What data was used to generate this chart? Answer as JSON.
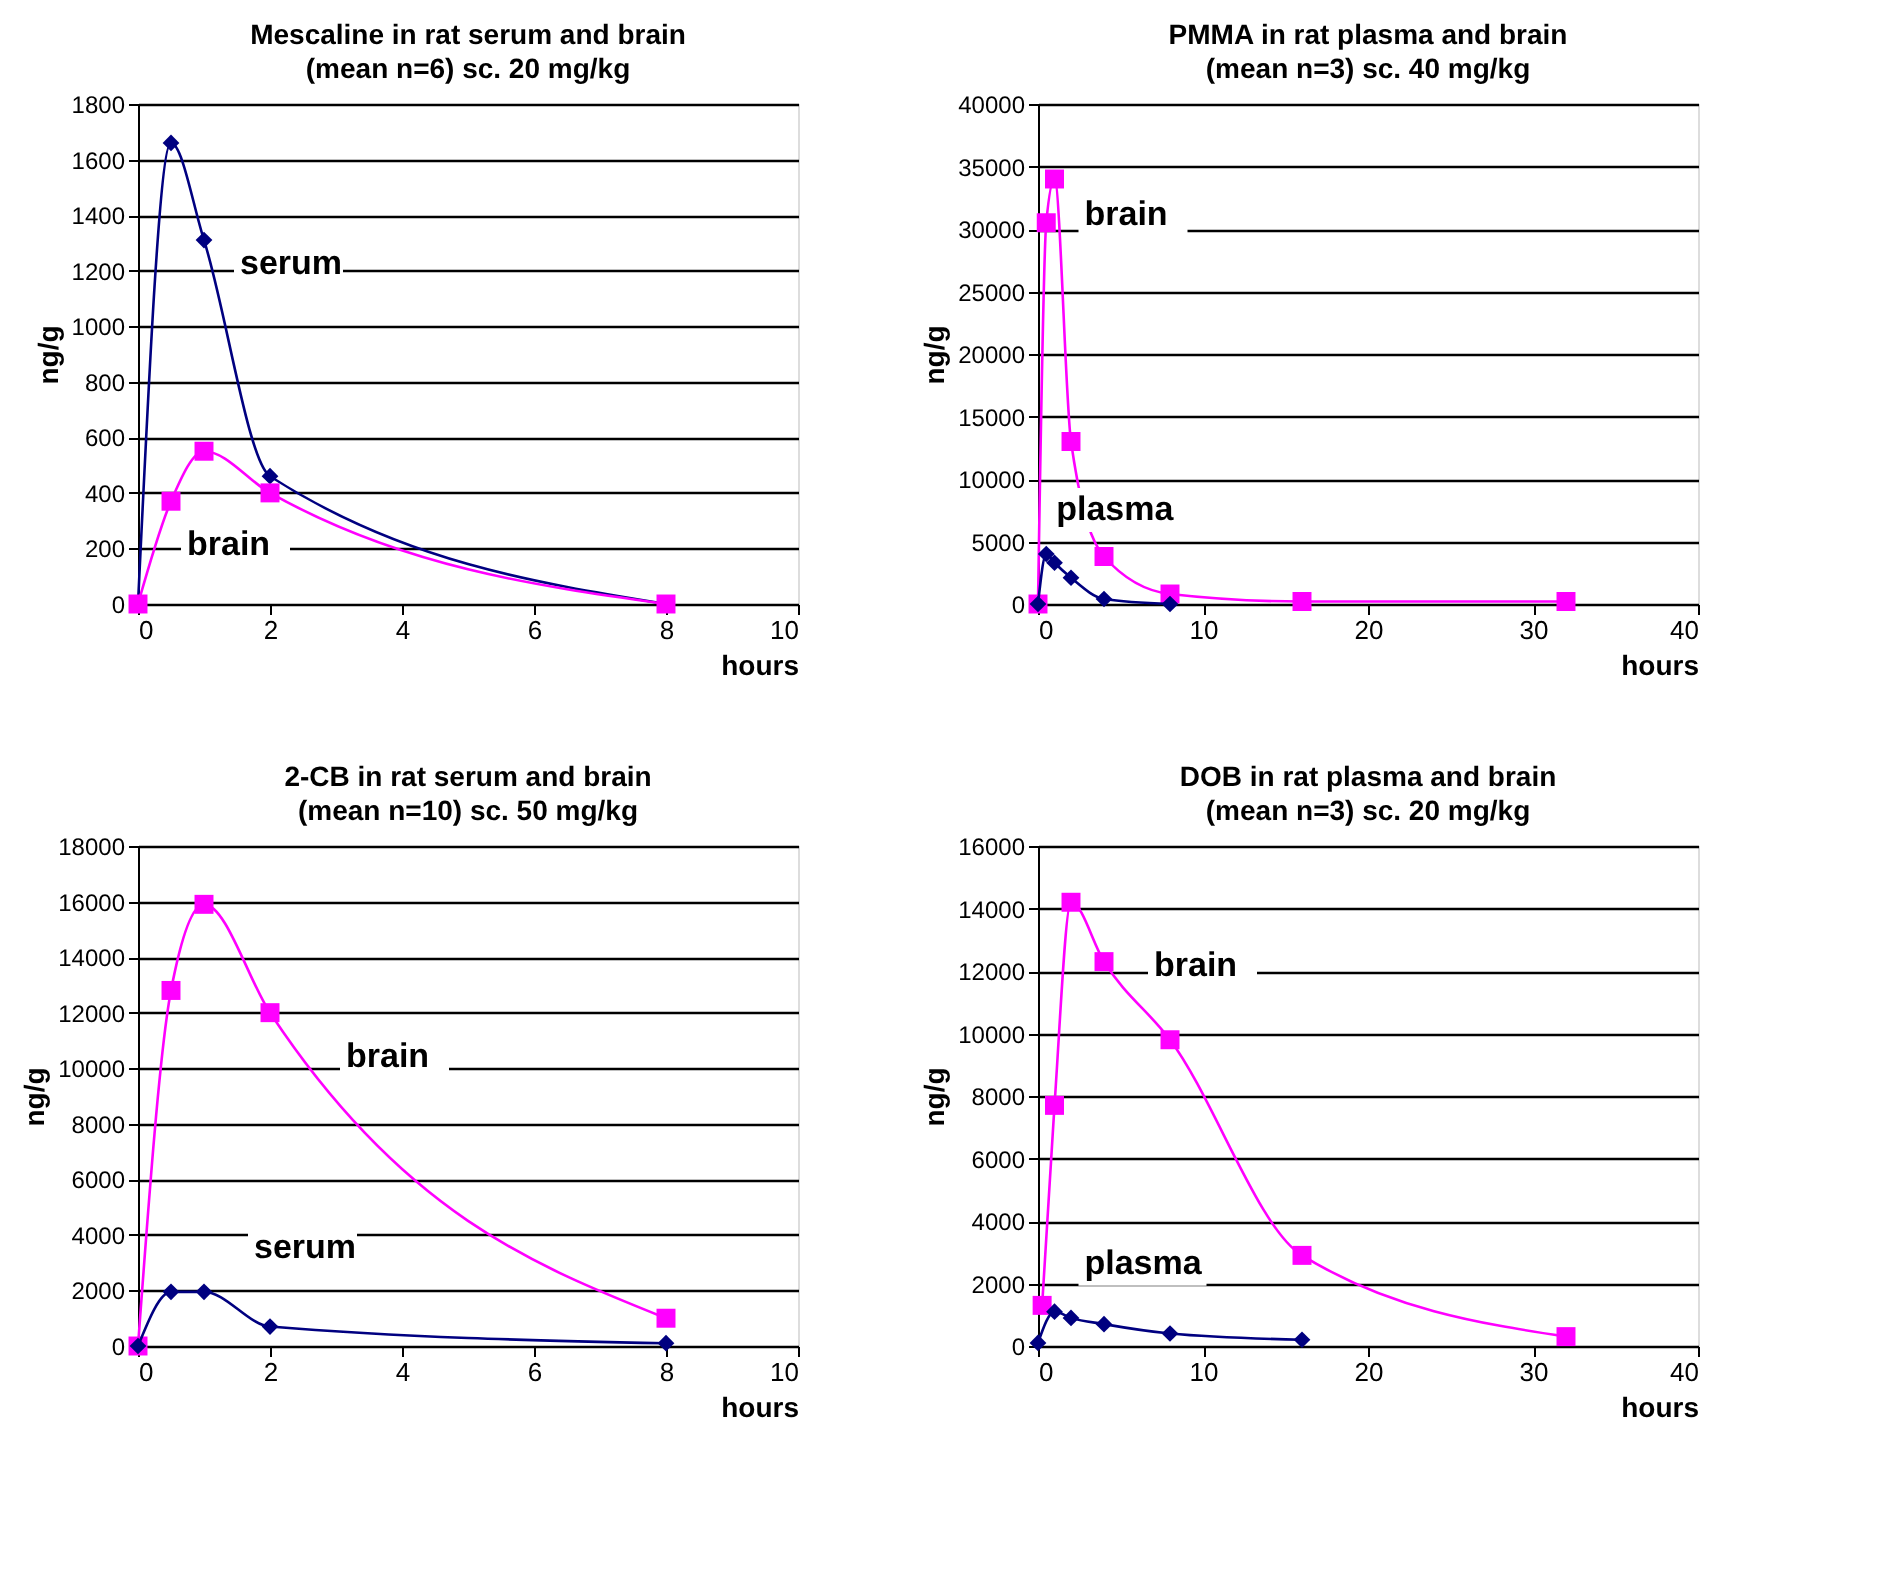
{
  "chart_data": [
    {
      "type": "line",
      "title": "Mescaline in rat serum and brain",
      "subtitle": "(mean n=6)  sc.  20 mg/kg",
      "xlabel": "hours",
      "ylabel": "ng/g",
      "xlim": [
        0,
        10
      ],
      "xticks": [
        0,
        2,
        4,
        6,
        8,
        10
      ],
      "ylim": [
        0,
        1800
      ],
      "yticks": [
        0,
        200,
        400,
        600,
        800,
        1000,
        1200,
        1400,
        1600,
        1800
      ],
      "grid": "y",
      "legend": false,
      "series": [
        {
          "name": "serum",
          "color": "#000080",
          "marker": "diamond",
          "x": [
            0,
            0.5,
            1,
            2,
            8
          ],
          "values": [
            0,
            1660,
            1310,
            460,
            0
          ]
        },
        {
          "name": "brain",
          "color": "#ff00ff",
          "marker": "square",
          "x": [
            0,
            0.5,
            1,
            2,
            8
          ],
          "values": [
            0,
            370,
            550,
            400,
            0
          ]
        }
      ]
    },
    {
      "type": "line",
      "title": "PMMA in rat plasma and brain",
      "subtitle": "(mean n=3) sc. 40 mg/kg",
      "xlabel": "hours",
      "ylabel": "ng/g",
      "xlim": [
        0,
        40
      ],
      "xticks": [
        0,
        10,
        20,
        30,
        40
      ],
      "ylim": [
        0,
        40000
      ],
      "yticks": [
        0,
        5000,
        10000,
        15000,
        20000,
        25000,
        30000,
        35000,
        40000
      ],
      "grid": "y",
      "legend": false,
      "series": [
        {
          "name": "brain",
          "color": "#ff00ff",
          "marker": "square",
          "x": [
            0,
            0.5,
            1,
            2,
            4,
            8,
            16,
            32
          ],
          "values": [
            0,
            30500,
            34000,
            13000,
            3800,
            800,
            200,
            200
          ]
        },
        {
          "name": "plasma",
          "color": "#000080",
          "marker": "diamond",
          "x": [
            0,
            0.5,
            1,
            2,
            4,
            8
          ],
          "values": [
            0,
            4000,
            3300,
            2100,
            400,
            0
          ]
        }
      ]
    },
    {
      "type": "line",
      "title": "2-CB in rat serum and brain",
      "subtitle": "(mean n=10) sc. 50 mg/kg",
      "xlabel": "hours",
      "ylabel": "ng/g",
      "xlim": [
        0,
        10
      ],
      "xticks": [
        0,
        2,
        4,
        6,
        8,
        10
      ],
      "ylim": [
        0,
        18000
      ],
      "yticks": [
        0,
        2000,
        4000,
        6000,
        8000,
        10000,
        12000,
        14000,
        16000,
        18000
      ],
      "grid": "y",
      "legend": false,
      "series": [
        {
          "name": "brain",
          "color": "#ff00ff",
          "marker": "square",
          "x": [
            0,
            0.5,
            1,
            2,
            8
          ],
          "values": [
            0,
            12800,
            15900,
            12000,
            1000
          ]
        },
        {
          "name": "serum",
          "color": "#000080",
          "marker": "diamond",
          "x": [
            0,
            0.5,
            1,
            2,
            8
          ],
          "values": [
            0,
            1950,
            1950,
            700,
            100
          ]
        }
      ]
    },
    {
      "type": "line",
      "title": "DOB in rat plasma and brain",
      "subtitle": "(mean n=3) sc. 20 mg/kg",
      "xlabel": "hours",
      "ylabel": "ng/g",
      "xlim": [
        0,
        40
      ],
      "xticks": [
        0,
        10,
        20,
        30,
        40
      ],
      "ylim": [
        0,
        16000
      ],
      "yticks": [
        0,
        2000,
        4000,
        6000,
        8000,
        10000,
        12000,
        14000,
        16000
      ],
      "grid": "y",
      "legend": false,
      "series": [
        {
          "name": "brain",
          "color": "#ff00ff",
          "marker": "square",
          "x": [
            0.25,
            1,
            2,
            4,
            8,
            16,
            32
          ],
          "values": [
            1300,
            7700,
            14200,
            12300,
            9800,
            2900,
            300
          ]
        },
        {
          "name": "plasma",
          "color": "#000080",
          "marker": "diamond",
          "x": [
            0,
            1,
            2,
            4,
            8,
            16
          ],
          "values": [
            100,
            1100,
            900,
            700,
            400,
            200
          ]
        }
      ]
    }
  ]
}
